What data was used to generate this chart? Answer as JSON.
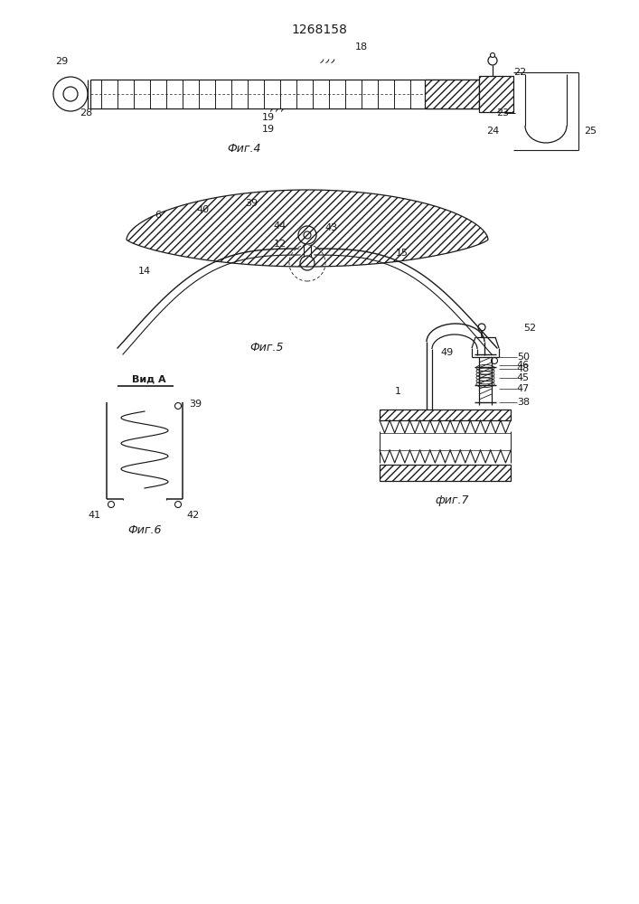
{
  "title": "1268158",
  "bg_color": "#ffffff",
  "lc": "#1a1a1a",
  "fig4_caption": "Фиг.4",
  "fig5_caption": "Фиг.5",
  "fig6_caption": "Фиг.6",
  "fig7_caption": "фиг.7",
  "vid_a": "Вид А"
}
